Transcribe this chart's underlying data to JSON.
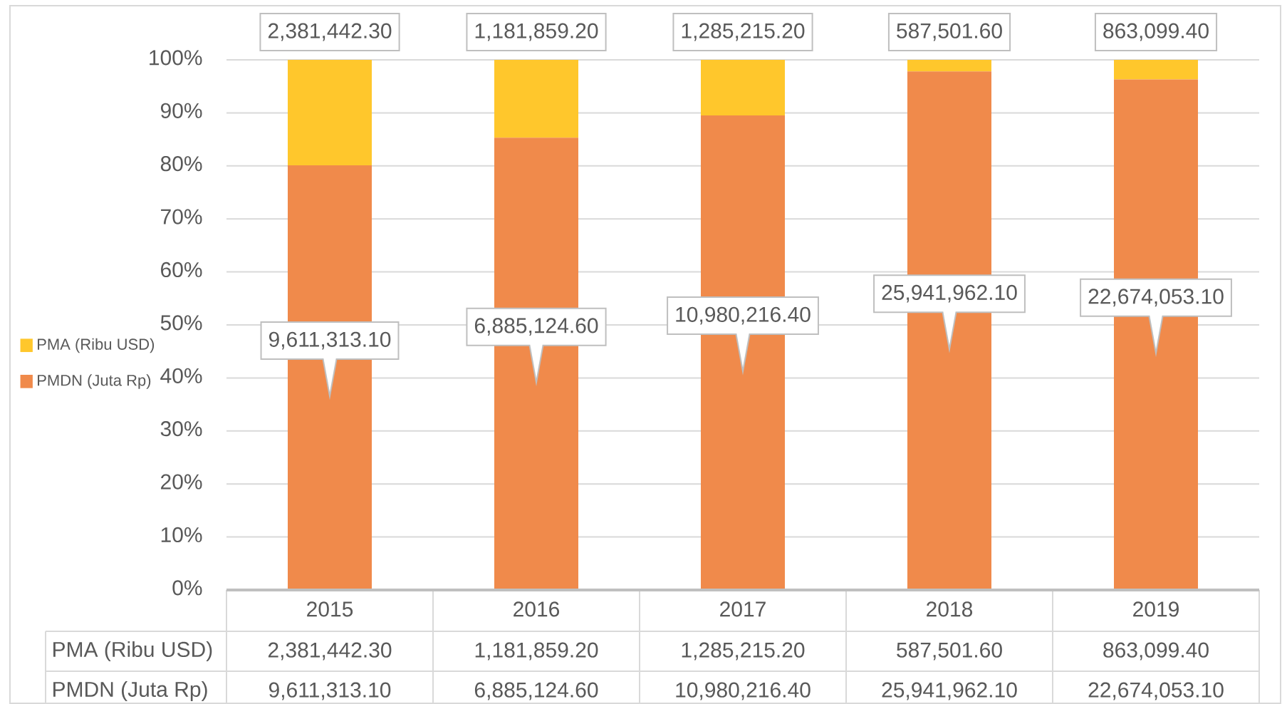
{
  "chart_data": {
    "type": "bar",
    "stacked": true,
    "categories": [
      "2015",
      "2016",
      "2017",
      "2018",
      "2019"
    ],
    "series": [
      {
        "name": "PMDN (Juta Rp)",
        "color": "#f08a4b",
        "values": [
          80.1,
          85.3,
          89.5,
          97.8,
          96.3
        ]
      },
      {
        "name": "PMA (Ribu USD)",
        "color": "#ffc72c",
        "values": [
          19.9,
          14.7,
          10.5,
          2.2,
          3.7
        ]
      }
    ],
    "annotations": [
      "2,381,442.30",
      "1,181,859.20",
      "1,285,215.20",
      "587,501.60",
      "863,099.40",
      "9,611,313.10",
      "6,885,124.60",
      "10,980,216.40",
      "25,941,962.10",
      "22,674,053.10"
    ],
    "ylim": [
      0,
      100
    ],
    "yticks": [
      {
        "value": 0,
        "label": "0%"
      },
      {
        "value": 10,
        "label": "10%"
      },
      {
        "value": 20,
        "label": "20%"
      },
      {
        "value": 30,
        "label": "30%"
      },
      {
        "value": 40,
        "label": "40%"
      },
      {
        "value": 50,
        "label": "50%"
      },
      {
        "value": 60,
        "label": "60%"
      },
      {
        "value": 70,
        "label": "70%"
      },
      {
        "value": 80,
        "label": "80%"
      },
      {
        "value": 90,
        "label": "90%"
      },
      {
        "value": 100,
        "label": "100%"
      }
    ],
    "grid": "y",
    "legend": "left"
  }
}
